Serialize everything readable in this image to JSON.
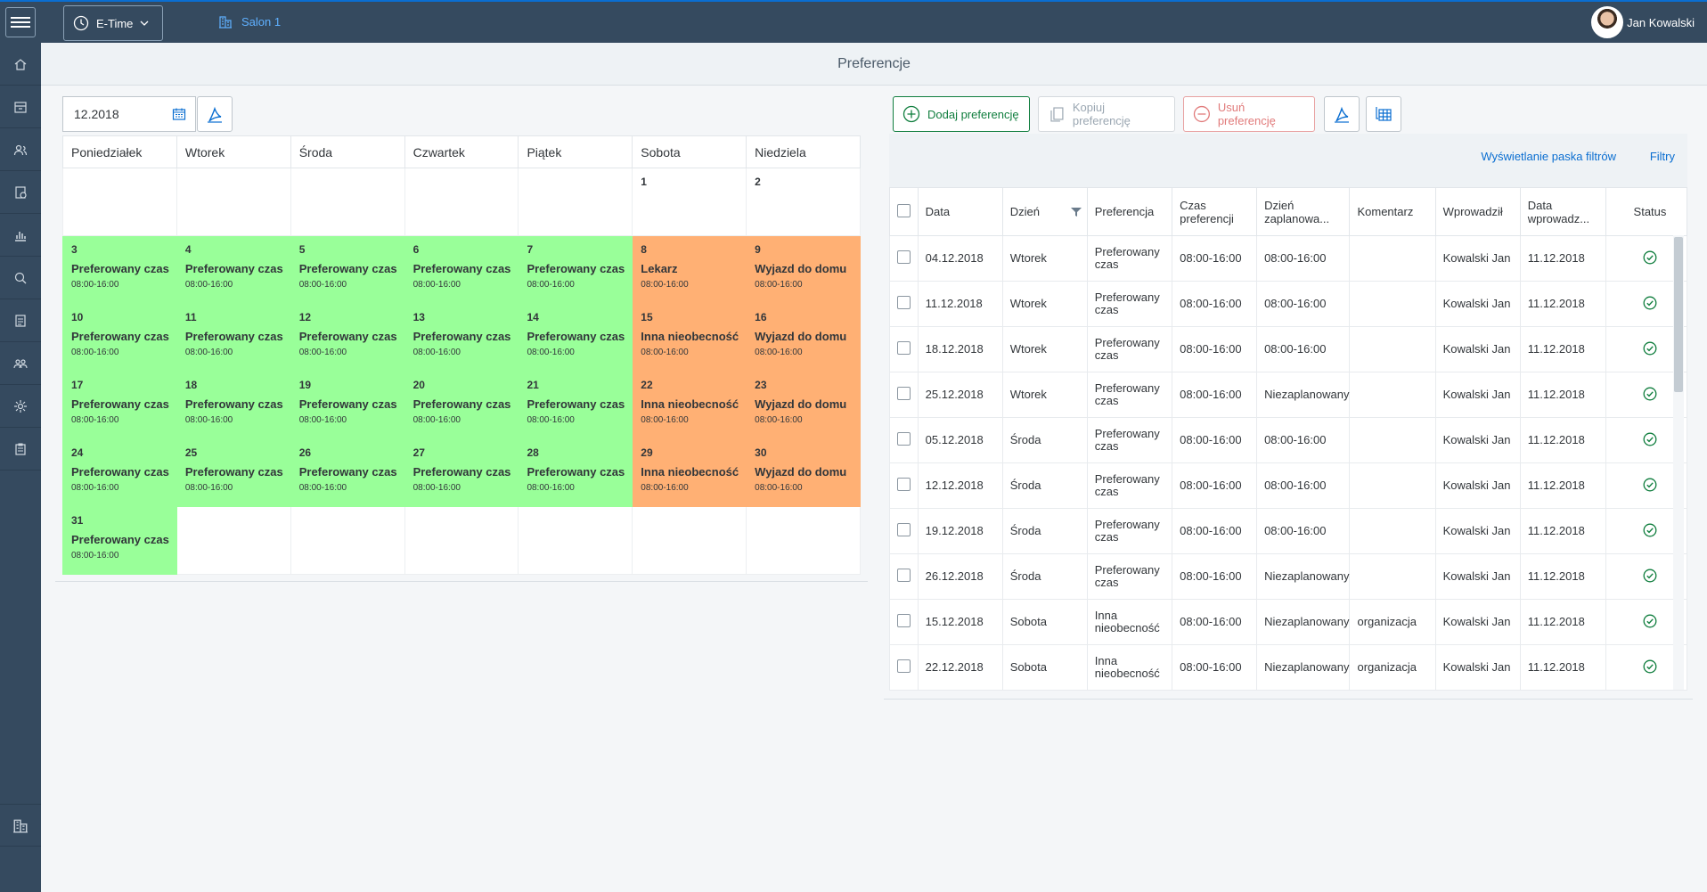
{
  "topbar": {
    "app_label": "E-Time",
    "location": "Salon 1",
    "user_name": "Jan Kowalski"
  },
  "sidebar": {
    "items": [
      "home-icon",
      "inventory-icon",
      "contacts-icon",
      "assignment-icon",
      "chart-icon",
      "map-search-icon",
      "document-icon",
      "team-icon",
      "settings-icon",
      "clipboard-icon"
    ],
    "bottom": "building-icon"
  },
  "page_title": "Preferencje",
  "left": {
    "month_value": "12.2018",
    "weekdays": [
      "Poniedziałek",
      "Wtorek",
      "Środa",
      "Czwartek",
      "Piątek",
      "Sobota",
      "Niedziela"
    ],
    "weeks": [
      [
        null,
        null,
        null,
        null,
        null,
        {
          "day": "1",
          "title": "",
          "time": "",
          "color": "white"
        },
        {
          "day": "2",
          "title": "",
          "time": "",
          "color": "white"
        }
      ],
      [
        {
          "day": "3",
          "title": "Preferowany czas",
          "time": "08:00-16:00",
          "color": "green"
        },
        {
          "day": "4",
          "title": "Preferowany czas",
          "time": "08:00-16:00",
          "color": "green"
        },
        {
          "day": "5",
          "title": "Preferowany czas",
          "time": "08:00-16:00",
          "color": "green"
        },
        {
          "day": "6",
          "title": "Preferowany czas",
          "time": "08:00-16:00",
          "color": "green"
        },
        {
          "day": "7",
          "title": "Preferowany czas",
          "time": "08:00-16:00",
          "color": "green"
        },
        {
          "day": "8",
          "title": "Lekarz",
          "time": "08:00-16:00",
          "color": "orange"
        },
        {
          "day": "9",
          "title": "Wyjazd do domu",
          "time": "08:00-16:00",
          "color": "orange"
        }
      ],
      [
        {
          "day": "10",
          "title": "Preferowany czas",
          "time": "08:00-16:00",
          "color": "green"
        },
        {
          "day": "11",
          "title": "Preferowany czas",
          "time": "08:00-16:00",
          "color": "green"
        },
        {
          "day": "12",
          "title": "Preferowany czas",
          "time": "08:00-16:00",
          "color": "green"
        },
        {
          "day": "13",
          "title": "Preferowany czas",
          "time": "08:00-16:00",
          "color": "green"
        },
        {
          "day": "14",
          "title": "Preferowany czas",
          "time": "08:00-16:00",
          "color": "green"
        },
        {
          "day": "15",
          "title": "Inna nieobecność",
          "time": "08:00-16:00",
          "color": "orange"
        },
        {
          "day": "16",
          "title": "Wyjazd do domu",
          "time": "08:00-16:00",
          "color": "orange"
        }
      ],
      [
        {
          "day": "17",
          "title": "Preferowany czas",
          "time": "08:00-16:00",
          "color": "green"
        },
        {
          "day": "18",
          "title": "Preferowany czas",
          "time": "08:00-16:00",
          "color": "green"
        },
        {
          "day": "19",
          "title": "Preferowany czas",
          "time": "08:00-16:00",
          "color": "green"
        },
        {
          "day": "20",
          "title": "Preferowany czas",
          "time": "08:00-16:00",
          "color": "green"
        },
        {
          "day": "21",
          "title": "Preferowany czas",
          "time": "08:00-16:00",
          "color": "green"
        },
        {
          "day": "22",
          "title": "Inna nieobecność",
          "time": "08:00-16:00",
          "color": "orange"
        },
        {
          "day": "23",
          "title": "Wyjazd do domu",
          "time": "08:00-16:00",
          "color": "orange"
        }
      ],
      [
        {
          "day": "24",
          "title": "Preferowany czas",
          "time": "08:00-16:00",
          "color": "green"
        },
        {
          "day": "25",
          "title": "Preferowany czas",
          "time": "08:00-16:00",
          "color": "green"
        },
        {
          "day": "26",
          "title": "Preferowany czas",
          "time": "08:00-16:00",
          "color": "green"
        },
        {
          "day": "27",
          "title": "Preferowany czas",
          "time": "08:00-16:00",
          "color": "green"
        },
        {
          "day": "28",
          "title": "Preferowany czas",
          "time": "08:00-16:00",
          "color": "green"
        },
        {
          "day": "29",
          "title": "Inna nieobecność",
          "time": "08:00-16:00",
          "color": "orange"
        },
        {
          "day": "30",
          "title": "Wyjazd do domu",
          "time": "08:00-16:00",
          "color": "orange"
        }
      ],
      [
        {
          "day": "31",
          "title": "Preferowany czas",
          "time": "08:00-16:00",
          "color": "green"
        },
        null,
        null,
        null,
        null,
        null,
        null
      ]
    ]
  },
  "colors": {
    "green": "#99ff99",
    "orange": "#ffb074",
    "accent": "#0a6ed1",
    "shell": "#354a5f"
  },
  "toolbar": {
    "add_label": "Dodaj preferencję",
    "copy_label": "Kopiuj preferencję",
    "delete_label": "Usuń preferencję"
  },
  "filters": {
    "show_filter_bar": "Wyświetlanie paska filtrów",
    "filters": "Filtry"
  },
  "table": {
    "columns": [
      "Data",
      "Dzień",
      "Preferencja",
      "Czas preferencji",
      "Dzień zaplanowa...",
      "Komentarz",
      "Wprowadził",
      "Data wprowadz...",
      "Status"
    ],
    "rows": [
      [
        "04.12.2018",
        "Wtorek",
        "Preferowany czas",
        "08:00-16:00",
        "08:00-16:00",
        "",
        "Kowalski Jan",
        "11.12.2018"
      ],
      [
        "11.12.2018",
        "Wtorek",
        "Preferowany czas",
        "08:00-16:00",
        "08:00-16:00",
        "",
        "Kowalski Jan",
        "11.12.2018"
      ],
      [
        "18.12.2018",
        "Wtorek",
        "Preferowany czas",
        "08:00-16:00",
        "08:00-16:00",
        "",
        "Kowalski Jan",
        "11.12.2018"
      ],
      [
        "25.12.2018",
        "Wtorek",
        "Preferowany czas",
        "08:00-16:00",
        "Niezaplanowany",
        "",
        "Kowalski Jan",
        "11.12.2018"
      ],
      [
        "05.12.2018",
        "Środa",
        "Preferowany czas",
        "08:00-16:00",
        "08:00-16:00",
        "",
        "Kowalski Jan",
        "11.12.2018"
      ],
      [
        "12.12.2018",
        "Środa",
        "Preferowany czas",
        "08:00-16:00",
        "08:00-16:00",
        "",
        "Kowalski Jan",
        "11.12.2018"
      ],
      [
        "19.12.2018",
        "Środa",
        "Preferowany czas",
        "08:00-16:00",
        "08:00-16:00",
        "",
        "Kowalski Jan",
        "11.12.2018"
      ],
      [
        "26.12.2018",
        "Środa",
        "Preferowany czas",
        "08:00-16:00",
        "Niezaplanowany",
        "",
        "Kowalski Jan",
        "11.12.2018"
      ],
      [
        "15.12.2018",
        "Sobota",
        "Inna nieobecność",
        "08:00-16:00",
        "Niezaplanowany",
        "organizacja",
        "Kowalski Jan",
        "11.12.2018"
      ],
      [
        "22.12.2018",
        "Sobota",
        "Inna nieobecność",
        "08:00-16:00",
        "Niezaplanowany",
        "organizacja",
        "Kowalski Jan",
        "11.12.2018"
      ]
    ],
    "status_icon": "check-circle-icon"
  }
}
